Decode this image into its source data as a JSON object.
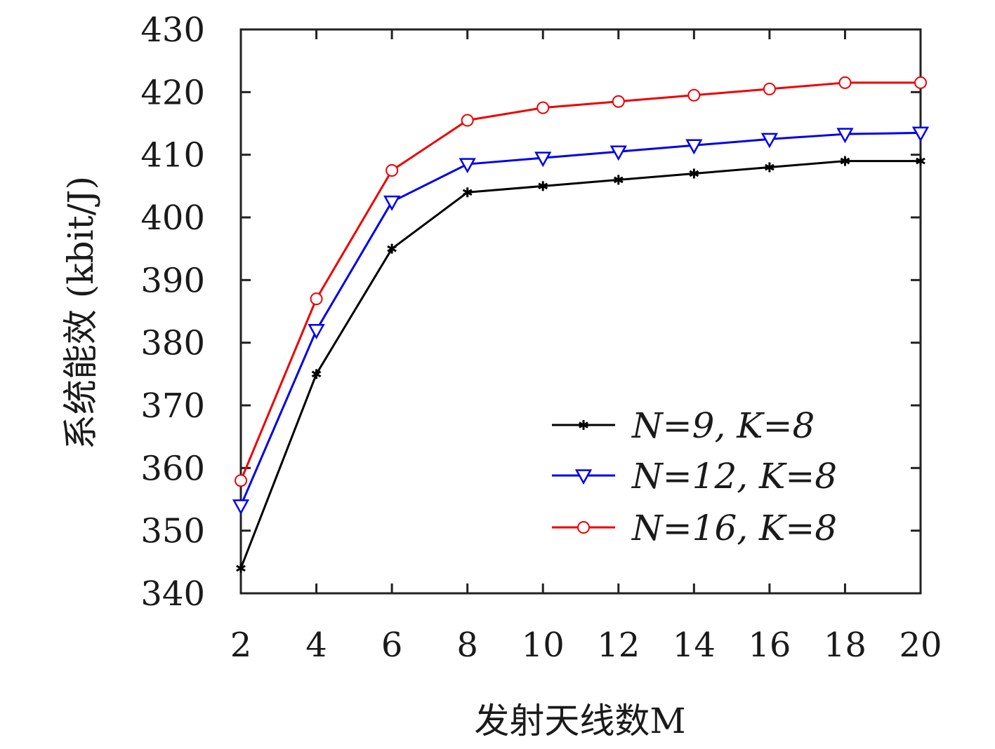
{
  "chart_data": {
    "type": "line",
    "title": "",
    "xlabel": "发射天线数M",
    "ylabel": "系统能效 (kbit/J)",
    "x": [
      2,
      4,
      6,
      8,
      10,
      12,
      14,
      16,
      18,
      20
    ],
    "xticks": [
      "2",
      "4",
      "6",
      "8",
      "10",
      "12",
      "14",
      "16",
      "18",
      "20"
    ],
    "yticks": [
      "340",
      "350",
      "360",
      "370",
      "380",
      "390",
      "400",
      "410",
      "420",
      "430"
    ],
    "xlim": [
      2,
      20
    ],
    "ylim": [
      340,
      430
    ],
    "grid": false,
    "legend_position": "lower-right",
    "series": [
      {
        "name": "N=9, K=8",
        "color": "#000000",
        "marker": "asterisk",
        "values": [
          344,
          375,
          395,
          404,
          405,
          406,
          407,
          408,
          409,
          409
        ]
      },
      {
        "name": "N=12, K=8",
        "color": "#0000ee",
        "marker": "triangle-down",
        "values": [
          354,
          382,
          402.5,
          408.5,
          409.5,
          410.5,
          411.5,
          412.5,
          413.3,
          413.5
        ]
      },
      {
        "name": "N=16, K=8",
        "color": "#ee0000",
        "marker": "circle",
        "values": [
          358,
          387,
          407.5,
          415.5,
          417.5,
          418.5,
          419.5,
          420.5,
          421.5,
          421.5
        ]
      }
    ]
  }
}
